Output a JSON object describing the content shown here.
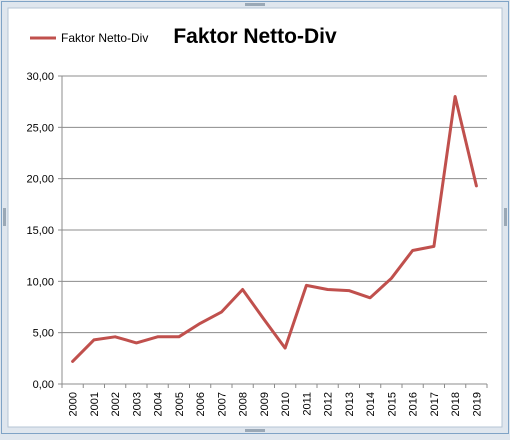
{
  "chart_data": {
    "type": "line",
    "title": "Faktor Netto-Div",
    "xlabel": "",
    "ylabel": "",
    "legend": {
      "placement": "top-left"
    },
    "grid": true,
    "ylim": [
      0,
      30
    ],
    "yticks": [
      "0,00",
      "5,00",
      "10,00",
      "15,00",
      "20,00",
      "25,00",
      "30,00"
    ],
    "categories": [
      "2000",
      "2001",
      "2002",
      "2003",
      "2004",
      "2005",
      "2006",
      "2007",
      "2008",
      "2009",
      "2010",
      "2011",
      "2012",
      "2013",
      "2014",
      "2015",
      "2016",
      "2017",
      "2018",
      "2019"
    ],
    "series": [
      {
        "name": "Faktor Netto-Div",
        "color": "#c0504d",
        "values": [
          2.2,
          4.3,
          4.6,
          4.0,
          4.6,
          4.6,
          5.9,
          7.0,
          9.2,
          6.3,
          3.5,
          9.6,
          9.2,
          9.1,
          8.4,
          10.3,
          13.0,
          13.4,
          28.0,
          19.3
        ]
      }
    ]
  }
}
